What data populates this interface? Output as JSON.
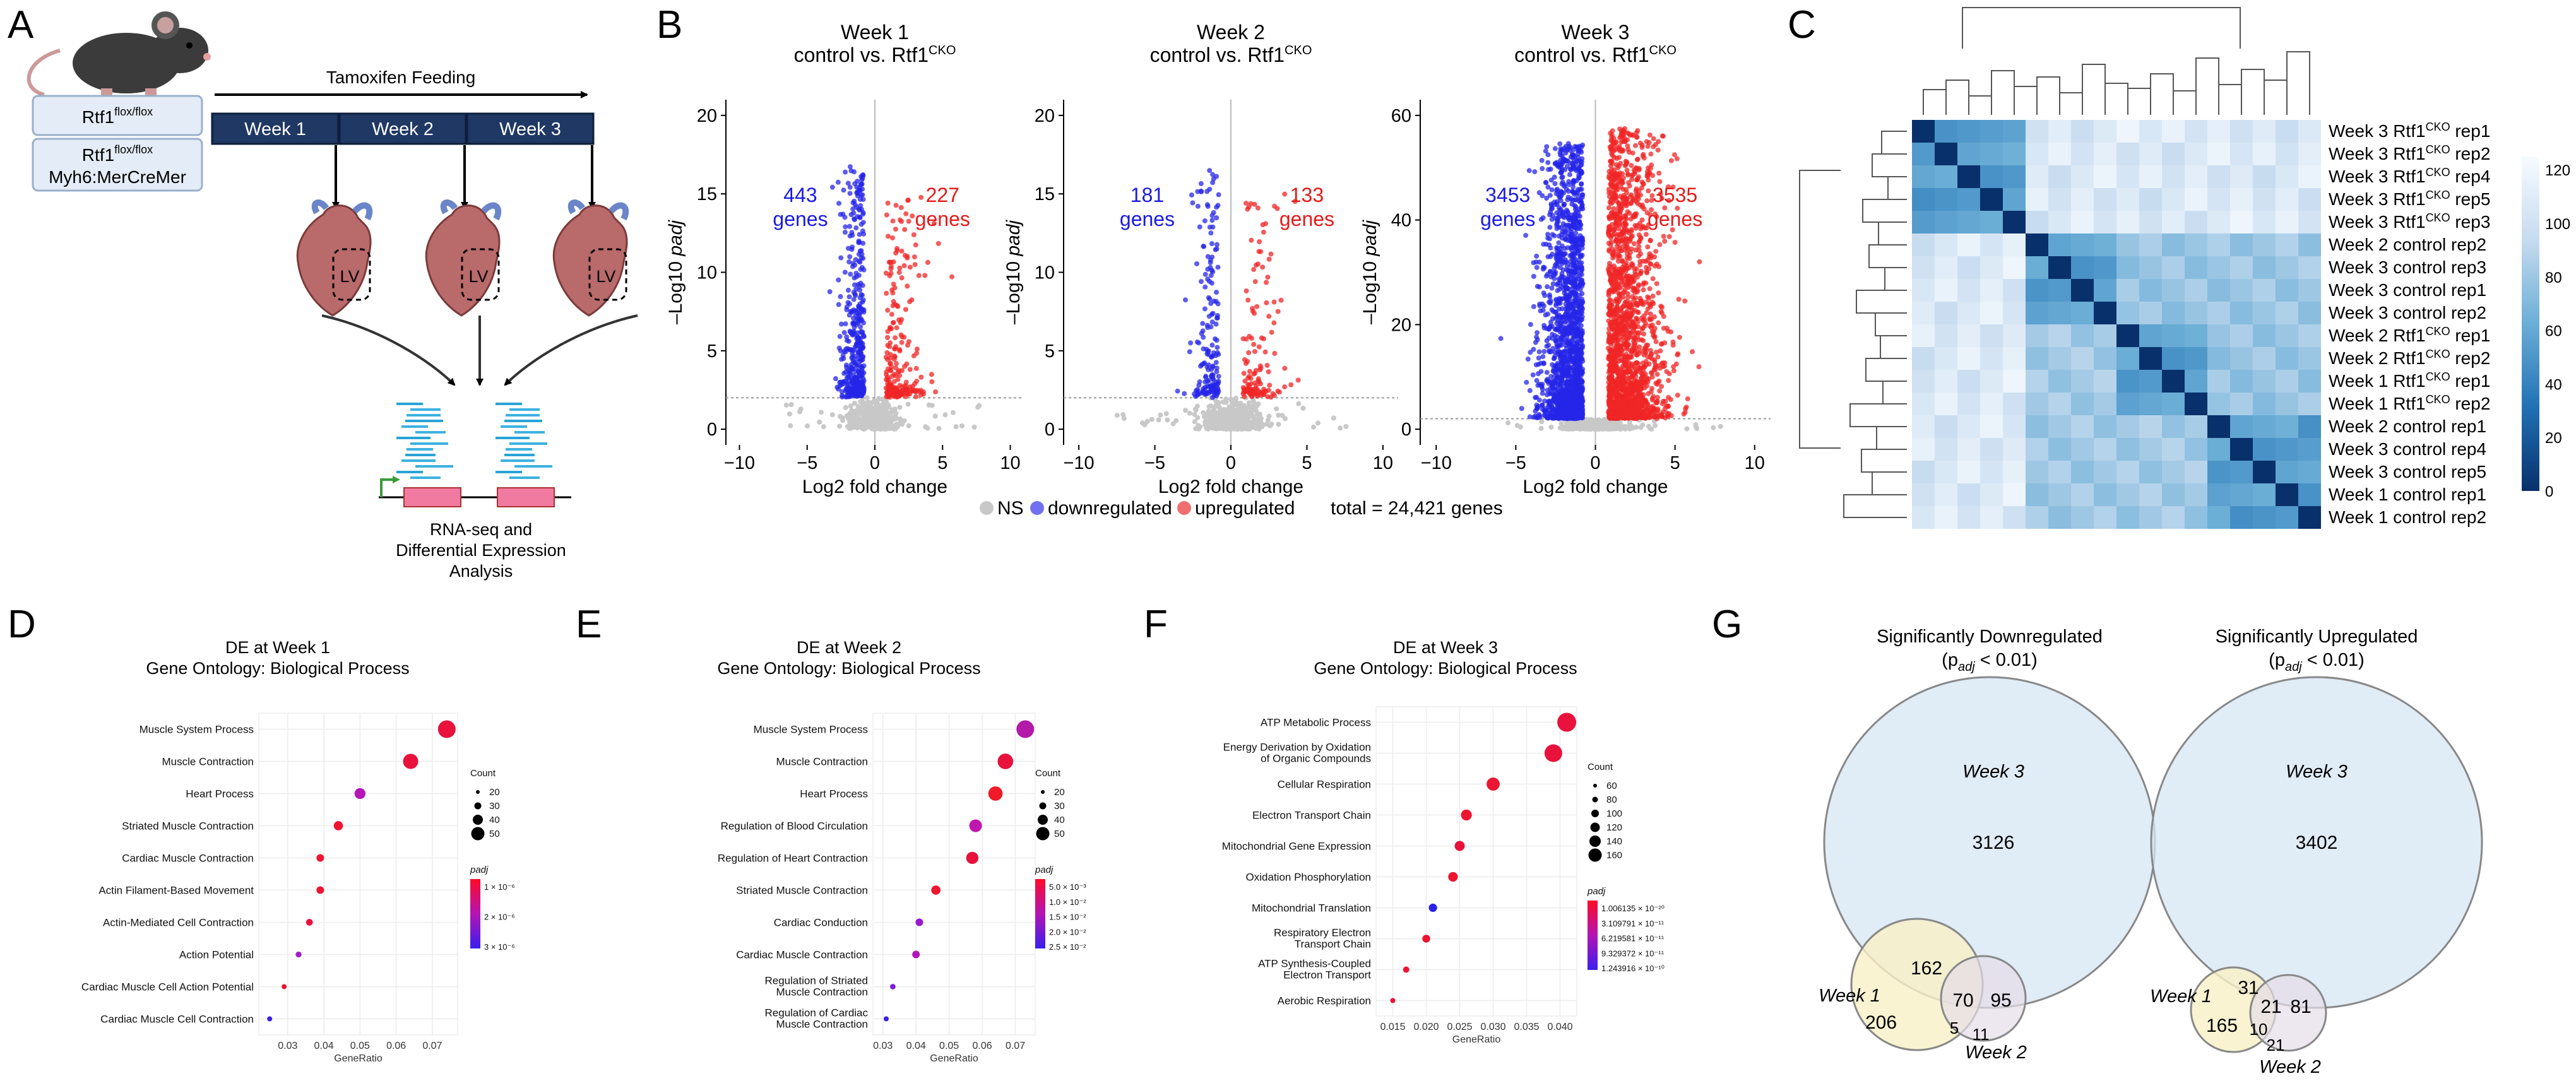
{
  "panel_labels": [
    "A",
    "B",
    "C",
    "D",
    "E",
    "F",
    "G"
  ],
  "panel_a": {
    "genotype_control": "Rtf1",
    "genotype_control_sup": "flox/flox",
    "genotype_cko_line1": "Rtf1",
    "genotype_cko_line1_sup": "flox/flox",
    "genotype_cko_line2": "Myh6:MerCreMer",
    "feeding_label": "Tamoxifen Feeding",
    "weeks": [
      "Week 1",
      "Week 2",
      "Week 3"
    ],
    "heart_label": "LV",
    "rnaseq_caption": [
      "RNA-seq and",
      "Differential Expression",
      "Analysis"
    ]
  },
  "chart_data": [
    {
      "type": "scatter",
      "name": "volcano-week1",
      "title": "Week 1",
      "subtitle_main": "control vs. Rtf1",
      "subtitle_sup": "CKO",
      "xlabel": "Log2 fold change",
      "ylabel_a": "–Log10 ",
      "ylabel_b": "padj",
      "xlim": [
        -11,
        11
      ],
      "ylim": [
        -1,
        21
      ],
      "xticks": [
        -10,
        -5,
        0,
        5,
        10
      ],
      "yticks": [
        0,
        5,
        10,
        15,
        20
      ],
      "threshold_y": 2,
      "down_count": "443",
      "down_word": "genes",
      "up_count": "227",
      "up_word": "genes",
      "max_y": 20,
      "n_down": 440,
      "n_up": 230
    },
    {
      "type": "scatter",
      "name": "volcano-week2",
      "title": "Week 2",
      "subtitle_main": "control vs. Rtf1",
      "subtitle_sup": "CKO",
      "xlabel": "Log2 fold change",
      "ylabel_a": "–Log10 ",
      "ylabel_b": "padj",
      "xlim": [
        -11,
        11
      ],
      "ylim": [
        -1,
        21
      ],
      "xticks": [
        -10,
        -5,
        0,
        5,
        10
      ],
      "yticks": [
        0,
        5,
        10,
        15,
        20
      ],
      "threshold_y": 2,
      "down_count": "181",
      "down_word": "genes",
      "up_count": "133",
      "up_word": "genes",
      "max_y": 20,
      "n_down": 180,
      "n_up": 130
    },
    {
      "type": "scatter",
      "name": "volcano-week3",
      "title": "Week 3",
      "subtitle_main": "control vs. Rtf1",
      "subtitle_sup": "CKO",
      "xlabel": "Log2 fold change",
      "ylabel_a": "–Log10 ",
      "ylabel_b": "padj",
      "xlim": [
        -11,
        11
      ],
      "ylim": [
        -3,
        63
      ],
      "xticks": [
        -10,
        -5,
        0,
        5,
        10
      ],
      "yticks": [
        0,
        20,
        40,
        60
      ],
      "threshold_y": 2,
      "down_count": "3453",
      "down_word": "genes",
      "up_count": "3535",
      "up_word": "genes",
      "max_y": 60,
      "n_down": 1800,
      "n_up": 1800
    },
    {
      "type": "heatmap",
      "name": "sample-distance-heatmap",
      "scale_ticks": [
        "120",
        "100",
        "80",
        "60",
        "40",
        "20",
        "0"
      ],
      "scale_range": [
        0,
        125
      ],
      "rows": [
        {
          "main": "Week 3 Rtf1",
          "sup": "CKO",
          "tail": " rep1"
        },
        {
          "main": "Week 3 Rtf1",
          "sup": "CKO",
          "tail": " rep2"
        },
        {
          "main": "Week 3 Rtf1",
          "sup": "CKO",
          "tail": " rep4"
        },
        {
          "main": "Week 3 Rtf1",
          "sup": "CKO",
          "tail": " rep5"
        },
        {
          "main": "Week 3 Rtf1",
          "sup": "CKO",
          "tail": " rep3"
        },
        {
          "main": "Week 2 control rep2",
          "sup": "",
          "tail": ""
        },
        {
          "main": "Week 3 control rep3",
          "sup": "",
          "tail": ""
        },
        {
          "main": "Week 3 control rep1",
          "sup": "",
          "tail": ""
        },
        {
          "main": "Week 3 control rep2",
          "sup": "",
          "tail": ""
        },
        {
          "main": "Week 2 Rtf1",
          "sup": "CKO",
          "tail": " rep1"
        },
        {
          "main": "Week 2 Rtf1",
          "sup": "CKO",
          "tail": " rep2"
        },
        {
          "main": "Week 1 Rtf1",
          "sup": "CKO",
          "tail": " rep1"
        },
        {
          "main": "Week 1 Rtf1",
          "sup": "CKO",
          "tail": " rep2"
        },
        {
          "main": "Week 2 control rep1",
          "sup": "",
          "tail": ""
        },
        {
          "main": "Week 3 control rep4",
          "sup": "",
          "tail": ""
        },
        {
          "main": "Week 3 control rep5",
          "sup": "",
          "tail": ""
        },
        {
          "main": "Week 1 control rep1",
          "sup": "",
          "tail": ""
        },
        {
          "main": "Week 1 control rep2",
          "sup": "",
          "tail": ""
        }
      ]
    },
    {
      "type": "scatter",
      "name": "go-week1",
      "title": "DE at Week 1",
      "subtitle": "Gene Ontology: Biological Process",
      "xlabel": "GeneRatio",
      "xlim": [
        0.022,
        0.077
      ],
      "xticks": [
        0.03,
        0.04,
        0.05,
        0.06,
        0.07
      ],
      "xtick_labels": [
        "0.03",
        "0.04",
        "0.05",
        "0.06",
        "0.07"
      ],
      "terms": [
        {
          "lines": [
            "Muscle System Process"
          ],
          "x": 0.074,
          "count": 50,
          "color": "#e8123c"
        },
        {
          "lines": [
            "Muscle Contraction"
          ],
          "x": 0.064,
          "count": 44,
          "color": "#e8123c"
        },
        {
          "lines": [
            "Heart Process"
          ],
          "x": 0.05,
          "count": 34,
          "color": "#b416b8"
        },
        {
          "lines": [
            "Striated Muscle Contraction"
          ],
          "x": 0.044,
          "count": 30,
          "color": "#ee1530"
        },
        {
          "lines": [
            "Cardiac Muscle Contraction"
          ],
          "x": 0.039,
          "count": 26,
          "color": "#ee1530"
        },
        {
          "lines": [
            "Actin Filament-Based Movement"
          ],
          "x": 0.039,
          "count": 26,
          "color": "#ee1530"
        },
        {
          "lines": [
            "Actin-Mediated Cell Contraction"
          ],
          "x": 0.036,
          "count": 24,
          "color": "#e8123c"
        },
        {
          "lines": [
            "Action Potential"
          ],
          "x": 0.033,
          "count": 22,
          "color": "#a41ac8"
        },
        {
          "lines": [
            "Cardiac Muscle Cell Action Potential"
          ],
          "x": 0.029,
          "count": 19,
          "color": "#ee1530"
        },
        {
          "lines": [
            "Cardiac Muscle Cell Contraction"
          ],
          "x": 0.025,
          "count": 15,
          "color": "#3a20e8"
        }
      ],
      "count_legend_title": "Count",
      "count_legend": [
        20,
        30,
        40,
        50
      ],
      "padj_legend_title": "padj",
      "padj_legend": [
        "1 × 10⁻⁶",
        "2 × 10⁻⁶",
        "3 × 10⁻⁶"
      ]
    },
    {
      "type": "scatter",
      "name": "go-week2",
      "title": "DE at Week 2",
      "subtitle": "Gene Ontology: Biological Process",
      "xlabel": "GeneRatio",
      "xlim": [
        0.027,
        0.076
      ],
      "xticks": [
        0.03,
        0.04,
        0.05,
        0.06,
        0.07
      ],
      "xtick_labels": [
        "0.03",
        "0.04",
        "0.05",
        "0.06",
        "0.07"
      ],
      "terms": [
        {
          "lines": [
            "Muscle System Process"
          ],
          "x": 0.073,
          "count": 50,
          "color": "#b41aa8"
        },
        {
          "lines": [
            "Muscle Contraction"
          ],
          "x": 0.067,
          "count": 45,
          "color": "#e8123c"
        },
        {
          "lines": [
            "Heart Process"
          ],
          "x": 0.064,
          "count": 42,
          "color": "#f01a28"
        },
        {
          "lines": [
            "Regulation of Blood Circulation"
          ],
          "x": 0.058,
          "count": 38,
          "color": "#c016b0"
        },
        {
          "lines": [
            "Regulation of Heart Contraction"
          ],
          "x": 0.057,
          "count": 37,
          "color": "#e8123c"
        },
        {
          "lines": [
            "Striated Muscle Contraction"
          ],
          "x": 0.046,
          "count": 30,
          "color": "#ee1530"
        },
        {
          "lines": [
            "Cardiac Conduction"
          ],
          "x": 0.041,
          "count": 26,
          "color": "#9a18d0"
        },
        {
          "lines": [
            "Cardiac Muscle Contraction"
          ],
          "x": 0.04,
          "count": 26,
          "color": "#b016b8"
        },
        {
          "lines": [
            "Regulation of Striated",
            "Muscle Contraction"
          ],
          "x": 0.033,
          "count": 21,
          "color": "#7d1ce0"
        },
        {
          "lines": [
            "Regulation of Cardiac",
            "Muscle Contraction"
          ],
          "x": 0.031,
          "count": 20,
          "color": "#3a20e8"
        }
      ],
      "count_legend_title": "Count",
      "count_legend": [
        20,
        30,
        40,
        50
      ],
      "padj_legend_title": "padj",
      "padj_legend": [
        "5.0 × 10⁻³",
        "1.0 × 10⁻²",
        "1.5 × 10⁻²",
        "2.0 × 10⁻²",
        "2.5 × 10⁻²"
      ]
    },
    {
      "type": "scatter",
      "name": "go-week3",
      "title": "DE at Week 3",
      "subtitle": "Gene Ontology: Biological Process",
      "xlabel": "GeneRatio",
      "xlim": [
        0.0125,
        0.0425
      ],
      "xticks": [
        0.015,
        0.02,
        0.025,
        0.03,
        0.035,
        0.04
      ],
      "xtick_labels": [
        "0.015",
        "0.020",
        "0.025",
        "0.030",
        "0.035",
        "0.040"
      ],
      "terms": [
        {
          "lines": [
            "ATP Metabolic Process"
          ],
          "x": 0.041,
          "count": 170,
          "color": "#e8123c"
        },
        {
          "lines": [
            "Energy Derivation by Oxidation",
            "of Organic Compounds"
          ],
          "x": 0.039,
          "count": 160,
          "color": "#e8123c"
        },
        {
          "lines": [
            "Cellular Respiration"
          ],
          "x": 0.03,
          "count": 124,
          "color": "#ee1530"
        },
        {
          "lines": [
            "Electron Transport Chain"
          ],
          "x": 0.026,
          "count": 106,
          "color": "#ee1530"
        },
        {
          "lines": [
            "Mitochondrial Gene Expression"
          ],
          "x": 0.025,
          "count": 100,
          "color": "#e8123c"
        },
        {
          "lines": [
            "Oxidation Phosphorylation"
          ],
          "x": 0.024,
          "count": 96,
          "color": "#ee1530"
        },
        {
          "lines": [
            "Mitochondrial Translation"
          ],
          "x": 0.021,
          "count": 86,
          "color": "#2a22e8"
        },
        {
          "lines": [
            "Respiratory Electron",
            "Transport Chain"
          ],
          "x": 0.02,
          "count": 82,
          "color": "#ee1530"
        },
        {
          "lines": [
            "ATP Synthesis-Coupled",
            "Electron Transport"
          ],
          "x": 0.017,
          "count": 70,
          "color": "#ee1530"
        },
        {
          "lines": [
            "Aerobic Respiration"
          ],
          "x": 0.015,
          "count": 60,
          "color": "#e8123c"
        }
      ],
      "count_legend_title": "Count",
      "count_legend": [
        60,
        80,
        100,
        120,
        140,
        160
      ],
      "padj_legend_title": "padj",
      "padj_legend": [
        "1.006135 × 10⁻²⁰",
        "3.109791 × 10⁻¹¹",
        "6.219581 × 10⁻¹¹",
        "9.329372 × 10⁻¹¹",
        "1.243916 × 10⁻¹⁰"
      ]
    }
  ],
  "legend_b": {
    "ns": "NS",
    "down": "downregulated",
    "up": "upregulated",
    "total": "total = 24,421 genes",
    "ns_color": "#c8c8c8",
    "down_color": "#7070f0",
    "up_color": "#f07070"
  },
  "panel_g": {
    "down_title_1": "Significantly Downregulated",
    "down_title_2a": "(p",
    "down_title_2sub": "adj",
    "down_title_2b": " < 0.01)",
    "up_title_1": "Significantly Upregulated",
    "up_title_2a": "(p",
    "up_title_2sub": "adj",
    "up_title_2b": " < 0.01)",
    "set_week3": "Week 3",
    "set_week1": "Week 1",
    "set_week2": "Week 2",
    "down": {
      "w3_only": "3126",
      "w1_w3": "162",
      "w1_w2_w3": "70",
      "w2_w3": "95",
      "w1_only": "206",
      "w1_w2": "5",
      "w2_only": "11"
    },
    "up": {
      "w3_only": "3402",
      "w1_w3": "31",
      "w1_w2_w3": "21",
      "w2_w3": "81",
      "w1_only": "165",
      "w1_w2": "10",
      "w2_only": "21"
    }
  }
}
